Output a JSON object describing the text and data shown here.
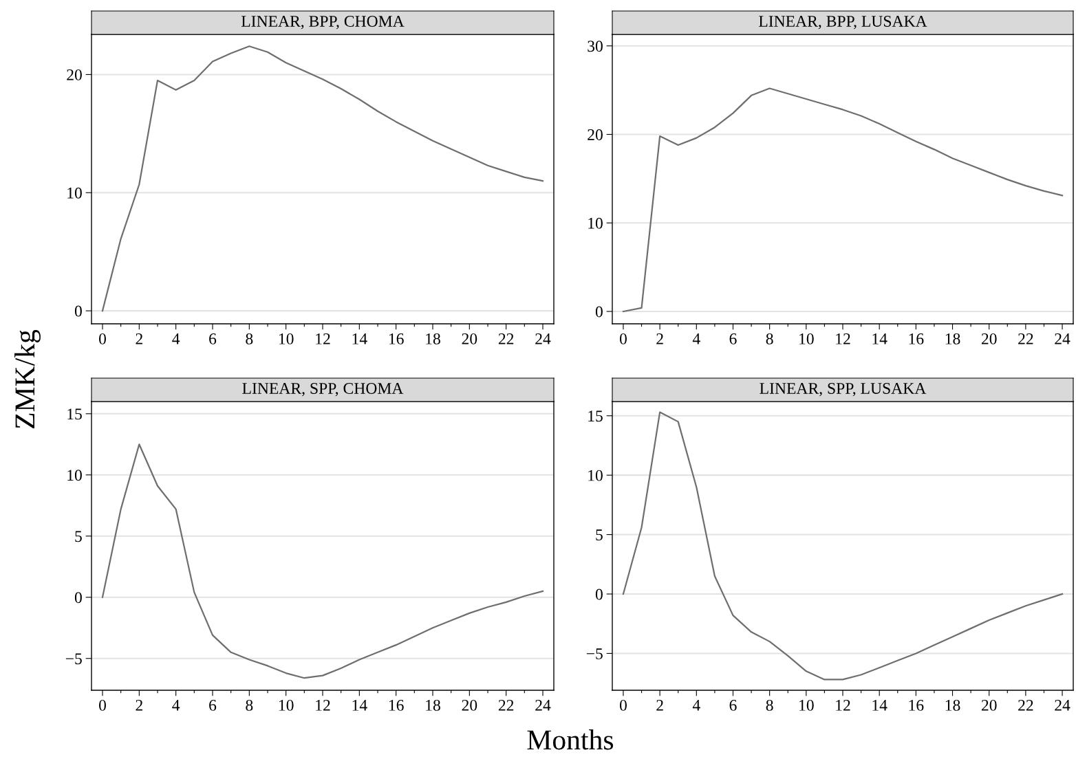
{
  "chart_data": [
    {
      "type": "line",
      "title": "LINEAR, BPP, CHOMA",
      "xlabel": "Months",
      "ylabel": "ZMK/kg",
      "x": [
        0,
        1,
        2,
        3,
        4,
        5,
        6,
        7,
        8,
        9,
        10,
        11,
        12,
        13,
        14,
        15,
        16,
        17,
        18,
        19,
        20,
        21,
        22,
        23,
        24
      ],
      "series": [
        {
          "color": "#6e6e6e",
          "values": [
            0,
            6.1,
            10.7,
            19.5,
            18.7,
            19.5,
            21.1,
            21.8,
            22.4,
            21.9,
            21.0,
            20.3,
            19.6,
            18.8,
            17.9,
            16.9,
            16.0,
            15.2,
            14.4,
            13.7,
            13.0,
            12.3,
            11.8,
            11.3,
            11.0
          ]
        }
      ],
      "xlim": [
        -0.6,
        24.6
      ],
      "ylim": [
        -1.1,
        23.4
      ],
      "yticks": [
        0,
        10,
        20
      ],
      "grid": "y",
      "legend": false,
      "marker": "none",
      "line_style": "solid",
      "xticks": [
        0,
        {
          "value": 1,
          "label": null
        },
        2,
        {
          "value": 3,
          "label": null
        },
        4,
        {
          "value": 5,
          "label": null
        },
        6,
        {
          "value": 7,
          "label": null
        },
        8,
        {
          "value": 9,
          "label": null
        },
        10,
        {
          "value": 11,
          "label": null
        },
        12,
        {
          "value": 13,
          "label": null
        },
        14,
        {
          "value": 15,
          "label": null
        },
        16,
        {
          "value": 17,
          "label": null
        },
        18,
        {
          "value": 19,
          "label": null
        },
        20,
        {
          "value": 21,
          "label": null
        },
        22,
        {
          "value": 23,
          "label": null
        },
        24
      ]
    },
    {
      "type": "line",
      "title": "LINEAR, BPP, LUSAKA",
      "x": [
        0,
        1,
        2,
        3,
        4,
        5,
        6,
        7,
        8,
        9,
        10,
        11,
        12,
        13,
        14,
        15,
        16,
        17,
        18,
        19,
        20,
        21,
        22,
        23,
        24
      ],
      "series": [
        {
          "color": "#6e6e6e",
          "values": [
            0,
            0.4,
            19.8,
            18.8,
            19.6,
            20.8,
            22.4,
            24.4,
            25.2,
            24.6,
            24.0,
            23.4,
            22.8,
            22.1,
            21.2,
            20.2,
            19.2,
            18.3,
            17.3,
            16.5,
            15.7,
            14.9,
            14.2,
            13.6,
            13.1
          ]
        }
      ],
      "xlim": [
        -0.6,
        24.6
      ],
      "ylim": [
        -1.4,
        31.3
      ],
      "yticks": [
        0,
        10,
        20,
        30
      ],
      "grid": "y",
      "legend": false,
      "marker": "none",
      "line_style": "solid",
      "xticks": [
        0,
        {
          "value": 1,
          "label": null
        },
        2,
        {
          "value": 3,
          "label": null
        },
        4,
        {
          "value": 5,
          "label": null
        },
        6,
        {
          "value": 7,
          "label": null
        },
        8,
        {
          "value": 9,
          "label": null
        },
        10,
        {
          "value": 11,
          "label": null
        },
        12,
        {
          "value": 13,
          "label": null
        },
        14,
        {
          "value": 15,
          "label": null
        },
        16,
        {
          "value": 17,
          "label": null
        },
        18,
        {
          "value": 19,
          "label": null
        },
        20,
        {
          "value": 21,
          "label": null
        },
        22,
        {
          "value": 23,
          "label": null
        },
        24
      ]
    },
    {
      "type": "line",
      "title": "LINEAR, SPP, CHOMA",
      "x": [
        0,
        1,
        2,
        3,
        4,
        5,
        6,
        7,
        8,
        9,
        10,
        11,
        12,
        13,
        14,
        15,
        16,
        17,
        18,
        19,
        20,
        21,
        22,
        23,
        24
      ],
      "series": [
        {
          "color": "#6e6e6e",
          "values": [
            0,
            7.2,
            12.5,
            9.1,
            7.2,
            0.4,
            -3.1,
            -4.5,
            -5.1,
            -5.6,
            -6.2,
            -6.6,
            -6.4,
            -5.8,
            -5.1,
            -4.5,
            -3.9,
            -3.2,
            -2.5,
            -1.9,
            -1.3,
            -0.8,
            -0.4,
            0.1,
            0.5
          ]
        }
      ],
      "xlim": [
        -0.6,
        24.6
      ],
      "ylim": [
        -7.6,
        16.0
      ],
      "yticks": [
        {
          "value": -5,
          "label": "−5"
        },
        0,
        5,
        10,
        15
      ],
      "grid": "y",
      "legend": false,
      "marker": "none",
      "line_style": "solid",
      "xticks": [
        0,
        {
          "value": 1,
          "label": null
        },
        2,
        {
          "value": 3,
          "label": null
        },
        4,
        {
          "value": 5,
          "label": null
        },
        6,
        {
          "value": 7,
          "label": null
        },
        8,
        {
          "value": 9,
          "label": null
        },
        10,
        {
          "value": 11,
          "label": null
        },
        12,
        {
          "value": 13,
          "label": null
        },
        14,
        {
          "value": 15,
          "label": null
        },
        16,
        {
          "value": 17,
          "label": null
        },
        18,
        {
          "value": 19,
          "label": null
        },
        20,
        {
          "value": 21,
          "label": null
        },
        22,
        {
          "value": 23,
          "label": null
        },
        24
      ]
    },
    {
      "type": "line",
      "title": "LINEAR, SPP, LUSAKA",
      "x": [
        0,
        1,
        2,
        3,
        4,
        5,
        6,
        7,
        8,
        9,
        10,
        11,
        12,
        13,
        14,
        15,
        16,
        17,
        18,
        19,
        20,
        21,
        22,
        23,
        24
      ],
      "series": [
        {
          "color": "#6e6e6e",
          "values": [
            0,
            5.6,
            15.3,
            14.5,
            9.0,
            1.5,
            -1.8,
            -3.2,
            -4.0,
            -5.2,
            -6.5,
            -7.2,
            -7.2,
            -6.8,
            -6.2,
            -5.6,
            -5.0,
            -4.3,
            -3.6,
            -2.9,
            -2.2,
            -1.6,
            -1.0,
            -0.5,
            0
          ]
        }
      ],
      "xlim": [
        -0.6,
        24.6
      ],
      "ylim": [
        -8.1,
        16.2
      ],
      "yticks": [
        {
          "value": -5,
          "label": "−5"
        },
        0,
        5,
        10,
        15
      ],
      "grid": "y",
      "legend": false,
      "marker": "none",
      "line_style": "solid",
      "xticks": [
        0,
        {
          "value": 1,
          "label": null
        },
        2,
        {
          "value": 3,
          "label": null
        },
        4,
        {
          "value": 5,
          "label": null
        },
        6,
        {
          "value": 7,
          "label": null
        },
        8,
        {
          "value": 9,
          "label": null
        },
        10,
        {
          "value": 11,
          "label": null
        },
        12,
        {
          "value": 13,
          "label": null
        },
        14,
        {
          "value": 15,
          "label": null
        },
        16,
        {
          "value": 17,
          "label": null
        },
        18,
        {
          "value": 19,
          "label": null
        },
        20,
        {
          "value": 21,
          "label": null
        },
        22,
        {
          "value": 23,
          "label": null
        },
        24
      ]
    }
  ]
}
